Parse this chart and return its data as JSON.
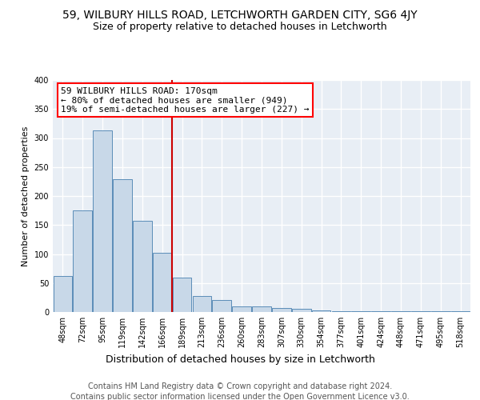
{
  "title1": "59, WILBURY HILLS ROAD, LETCHWORTH GARDEN CITY, SG6 4JY",
  "title2": "Size of property relative to detached houses in Letchworth",
  "xlabel": "Distribution of detached houses by size in Letchworth",
  "ylabel": "Number of detached properties",
  "bar_values": [
    62,
    175,
    313,
    229,
    157,
    102,
    60,
    28,
    21,
    9,
    10,
    7,
    5,
    3,
    2,
    1,
    1,
    1,
    1,
    1,
    1
  ],
  "categories": [
    "48sqm",
    "72sqm",
    "95sqm",
    "119sqm",
    "142sqm",
    "166sqm",
    "189sqm",
    "213sqm",
    "236sqm",
    "260sqm",
    "283sqm",
    "307sqm",
    "330sqm",
    "354sqm",
    "377sqm",
    "401sqm",
    "424sqm",
    "448sqm",
    "471sqm",
    "495sqm",
    "518sqm"
  ],
  "bar_color": "#c8d8e8",
  "bar_edge_color": "#5b8db8",
  "bg_color": "#e8eef5",
  "grid_color": "#ffffff",
  "annotation_text": "59 WILBURY HILLS ROAD: 170sqm\n← 80% of detached houses are smaller (949)\n19% of semi-detached houses are larger (227) →",
  "vline_x": 5.5,
  "vline_color": "#cc0000",
  "footer1": "Contains HM Land Registry data © Crown copyright and database right 2024.",
  "footer2": "Contains public sector information licensed under the Open Government Licence v3.0.",
  "ylim": [
    0,
    400
  ],
  "yticks": [
    0,
    50,
    100,
    150,
    200,
    250,
    300,
    350,
    400
  ],
  "title1_fontsize": 10,
  "title2_fontsize": 9,
  "xlabel_fontsize": 9,
  "ylabel_fontsize": 8,
  "tick_fontsize": 7,
  "footer_fontsize": 7,
  "annotation_fontsize": 8
}
